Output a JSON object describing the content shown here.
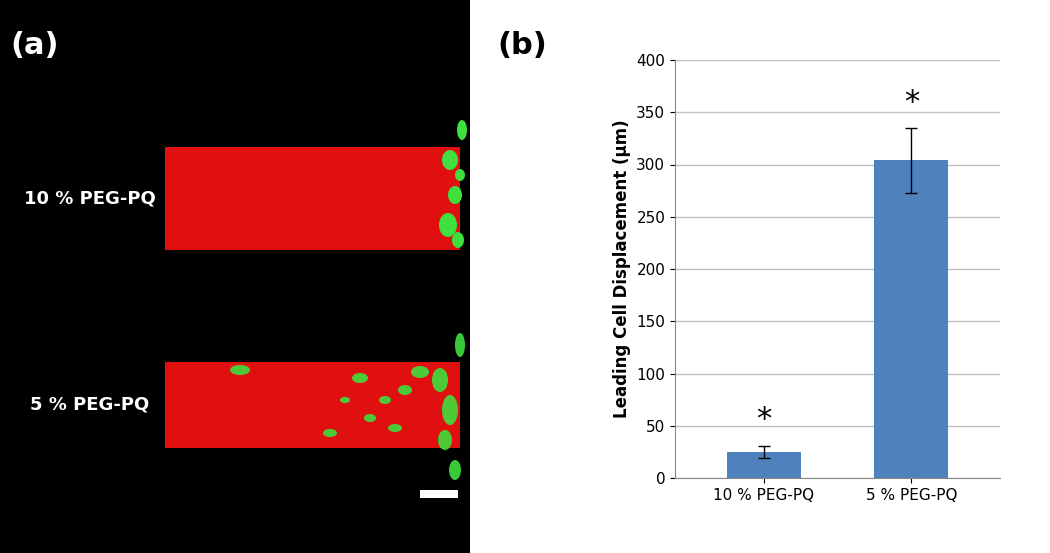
{
  "panel_labels": [
    "(a)",
    "(b)"
  ],
  "image_labels": [
    "10 % PEG-PQ",
    "5 % PEG-PQ"
  ],
  "chart_data": {
    "type": "bar",
    "categories": [
      "10 % PEG-PQ",
      "5 % PEG-PQ"
    ],
    "values": [
      25,
      304
    ],
    "errors": [
      6,
      31
    ],
    "annotations": [
      "*",
      "*"
    ],
    "ylabel": "Leading Cell Displacement (µm)",
    "color": "#4f81bd",
    "ylim": [
      0,
      400
    ],
    "yticks": [
      0,
      50,
      100,
      150,
      200,
      250,
      300,
      350,
      400
    ],
    "grid": true
  }
}
